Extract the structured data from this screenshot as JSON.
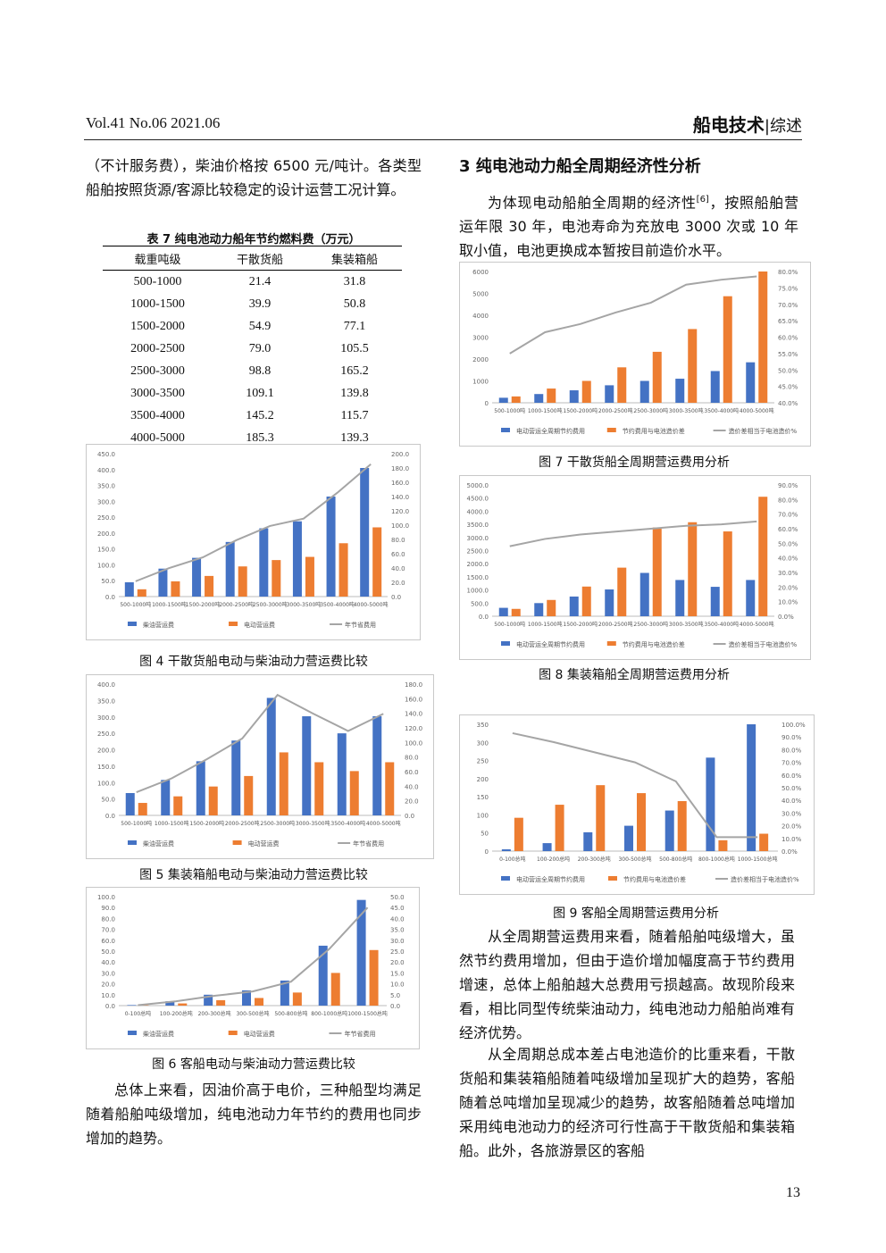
{
  "header": {
    "left": "Vol.41   No.06   2021.06",
    "journal": "船电技术",
    "section": "|综述"
  },
  "left": {
    "p1": "（不计服务费），柴油价格按 6500 元/吨计。各类型船舶按照货源/客源比较稳定的设计运营工况计算。",
    "table7": {
      "title": "表 7  纯电池动力船年节约燃料费（万元）",
      "headers": [
        "载重吨级",
        "干散货船",
        "集装箱船"
      ],
      "rows": [
        [
          "500-1000",
          "21.4",
          "31.8"
        ],
        [
          "1000-1500",
          "39.9",
          "50.8"
        ],
        [
          "1500-2000",
          "54.9",
          "77.1"
        ],
        [
          "2000-2500",
          "79.0",
          "105.5"
        ],
        [
          "2500-3000",
          "98.8",
          "165.2"
        ],
        [
          "3000-3500",
          "109.1",
          "139.8"
        ],
        [
          "3500-4000",
          "145.2",
          "115.7"
        ],
        [
          "4000-5000",
          "185.3",
          "139.3"
        ]
      ]
    },
    "fig4_caption": "图 4  干散货船电动与柴油动力营运费比较",
    "fig5_caption": "图 5  集装箱船电动与柴油动力营运费比较",
    "fig6_caption": "图 6  客船电动与柴油动力营运费比较",
    "p2": "总体上来看，因油价高于电价，三种船型均满足随着船舶吨级增加，纯电池动力年节约的费用也同步增加的趋势。"
  },
  "right": {
    "sec_title": "3   纯电池动力船全周期经济性分析",
    "p1_a": "为体现电动船舶全周期的经济性",
    "p1_ref": "[6]",
    "p1_b": "，按照船舶营运年限 30 年，电池寿命为充放电 3000 次或 10 年取小值，电池更换成本暂按目前造价水平。",
    "fig7_caption": "图 7  干散货船全周期营运费用分析",
    "fig8_caption": "图 8  集装箱船全周期营运费用分析",
    "fig9_caption": "图 9  客船全周期营运费用分析",
    "p2": "从全周期营运费用来看，随着船舶吨级增大，虽然节约费用增加，但由于造价增加幅度高于节约费用增速，总体上船舶越大总费用亏损越高。故现阶段来看，相比同型传统柴油动力，纯电池动力船舶尚难有经济优势。",
    "p3": "从全周期总成本差占电池造价的比重来看，干散货船和集装箱船随着吨级增加呈现扩大的趋势，客船随着总吨增加呈现减少的趋势，故客船随着总吨增加采用纯电池动力的经济可行性高于干散货船和集装箱船。此外，各旅游景区的客船"
  },
  "page_number": "13",
  "colors": {
    "blue": "#4472c4",
    "orange": "#ed7d31",
    "gray": "#a5a5a5"
  },
  "chart_data": [
    {
      "id": "fig4",
      "type": "bar",
      "categories": [
        "500-1000吨",
        "1000-1500吨",
        "1500-2000吨",
        "2000-2500吨",
        "2500-3000吨",
        "3000-3500吨",
        "3500-4000吨",
        "4000-5000吨"
      ],
      "series": [
        {
          "name": "柴油营运费",
          "axis": "left",
          "values": [
            45,
            88,
            122,
            172,
            215,
            237,
            315,
            405
          ]
        },
        {
          "name": "电动营运费",
          "axis": "left",
          "values": [
            23,
            48,
            65,
            95,
            115,
            125,
            168,
            218
          ]
        },
        {
          "name": "年节省费用",
          "axis": "right",
          "type": "line",
          "values": [
            21.4,
            39.9,
            54.9,
            79.0,
            98.8,
            109.1,
            145.2,
            185.3
          ]
        }
      ],
      "ylim": [
        0,
        450
      ],
      "yticks": [
        0,
        50,
        100,
        150,
        200,
        250,
        300,
        350,
        400,
        450
      ],
      "y2lim": [
        0,
        200
      ],
      "y2ticks": [
        0,
        20,
        40,
        60,
        80,
        100,
        120,
        140,
        160,
        180,
        200
      ]
    },
    {
      "id": "fig5",
      "type": "bar",
      "categories": [
        "500-1000吨",
        "1000-1500吨",
        "1500-2000吨",
        "2000-2500吨",
        "2500-3000吨",
        "3000-3500吨",
        "3500-4000吨",
        "4000-5000吨"
      ],
      "series": [
        {
          "name": "柴油营运费",
          "axis": "left",
          "values": [
            68,
            108,
            165,
            228,
            358,
            302,
            250,
            302
          ]
        },
        {
          "name": "电动营运费",
          "axis": "left",
          "values": [
            38,
            58,
            88,
            120,
            192,
            162,
            135,
            162
          ]
        },
        {
          "name": "年节省费用",
          "axis": "right",
          "type": "line",
          "values": [
            31.8,
            50.8,
            77.1,
            105.5,
            165.2,
            139.8,
            115.7,
            139.3
          ]
        }
      ],
      "ylim": [
        0,
        400
      ],
      "yticks": [
        0,
        50,
        100,
        150,
        200,
        250,
        300,
        350,
        400
      ],
      "y2lim": [
        0,
        180
      ],
      "y2ticks": [
        0,
        20,
        40,
        60,
        80,
        100,
        120,
        140,
        160,
        180
      ]
    },
    {
      "id": "fig6",
      "type": "bar",
      "categories": [
        "0-100总吨",
        "100-200总吨",
        "200-300总吨",
        "300-500总吨",
        "500-800总吨",
        "800-1000总吨",
        "1000-1500总吨"
      ],
      "series": [
        {
          "name": "柴油营运费",
          "axis": "left",
          "values": [
            0.5,
            4,
            10,
            14,
            23,
            55,
            97
          ]
        },
        {
          "name": "电动营运费",
          "axis": "left",
          "values": [
            0.3,
            2,
            5,
            7,
            12,
            30,
            51
          ]
        },
        {
          "name": "年节省费用",
          "axis": "right",
          "type": "line",
          "values": [
            0.2,
            2,
            4.5,
            6.5,
            11,
            26,
            45
          ]
        }
      ],
      "ylim": [
        0,
        100
      ],
      "yticks": [
        0,
        10,
        20,
        30,
        40,
        50,
        60,
        70,
        80,
        90,
        100
      ],
      "y2lim": [
        0,
        50
      ],
      "y2ticks": [
        0,
        5,
        10,
        15,
        20,
        25,
        30,
        35,
        40,
        45,
        50
      ]
    },
    {
      "id": "fig7",
      "type": "bar",
      "categories": [
        "500-1000吨",
        "1000-1500吨",
        "1500-2000吨",
        "2000-2500吨",
        "2500-3000吨",
        "3000-3500吨",
        "3500-4000吨",
        "4000-5000吨"
      ],
      "series": [
        {
          "name": "电动营运全周期节约费用",
          "axis": "left",
          "values": [
            230,
            400,
            570,
            800,
            1000,
            1100,
            1450,
            1850
          ]
        },
        {
          "name": "节约费用与电池造价差",
          "axis": "left",
          "values": [
            290,
            650,
            1000,
            1620,
            2330,
            3370,
            4870,
            6000
          ]
        },
        {
          "name": "造价差相当于电池造价%",
          "axis": "right",
          "type": "line",
          "values": [
            55.0,
            61.5,
            64.0,
            67.5,
            70.5,
            76.0,
            77.5,
            78.5
          ]
        }
      ],
      "ylim": [
        0,
        6000
      ],
      "yticks": [
        0,
        1000,
        2000,
        3000,
        4000,
        5000,
        6000
      ],
      "y2lim": [
        40,
        80
      ],
      "y2ticks": [
        40,
        45,
        50,
        55,
        60,
        65,
        70,
        75,
        80
      ]
    },
    {
      "id": "fig8",
      "type": "bar",
      "categories": [
        "500-1000吨",
        "1000-1500吨",
        "1500-2000吨",
        "2000-2500吨",
        "2500-3000吨",
        "3000-3500吨",
        "3500-4000吨",
        "4000-5000吨"
      ],
      "series": [
        {
          "name": "电动营运全周期节约费用",
          "axis": "left",
          "values": [
            320,
            500,
            750,
            1020,
            1650,
            1380,
            1120,
            1380
          ]
        },
        {
          "name": "节约费用与电池造价差",
          "axis": "left",
          "values": [
            280,
            620,
            1130,
            1850,
            3380,
            3580,
            3230,
            4550
          ]
        },
        {
          "name": "造价差相当于电池造价%",
          "axis": "right",
          "type": "line",
          "values": [
            48,
            53,
            56,
            58,
            60,
            62,
            63,
            65
          ]
        }
      ],
      "ylim": [
        0,
        5000
      ],
      "yticks": [
        0,
        500,
        1000,
        1500,
        2000,
        2500,
        3000,
        3500,
        4000,
        4500,
        5000
      ],
      "y2lim": [
        0,
        90
      ],
      "y2ticks": [
        0,
        10,
        20,
        30,
        40,
        50,
        60,
        70,
        80,
        90
      ]
    },
    {
      "id": "fig9",
      "type": "bar",
      "categories": [
        "0-100总吨",
        "100-200总吨",
        "200-300总吨",
        "300-500总吨",
        "500-800总吨",
        "800-1000总吨",
        "1000-1500总吨"
      ],
      "series": [
        {
          "name": "电动营运全周期节约费用",
          "axis": "left",
          "values": [
            5,
            22,
            52,
            70,
            112,
            258,
            350
          ]
        },
        {
          "name": "节约费用与电池造价差",
          "axis": "left",
          "values": [
            92,
            128,
            182,
            160,
            138,
            30,
            48
          ]
        },
        {
          "name": "造价差相当于电池造价%",
          "axis": "right",
          "type": "line",
          "values": [
            93,
            86,
            78,
            70,
            55,
            11,
            11
          ]
        }
      ],
      "ylim": [
        0,
        350
      ],
      "yticks": [
        0,
        50,
        100,
        150,
        200,
        250,
        300,
        350
      ],
      "y2lim": [
        0,
        100
      ],
      "y2ticks": [
        0,
        10,
        20,
        30,
        40,
        50,
        60,
        70,
        80,
        90,
        100
      ]
    }
  ]
}
